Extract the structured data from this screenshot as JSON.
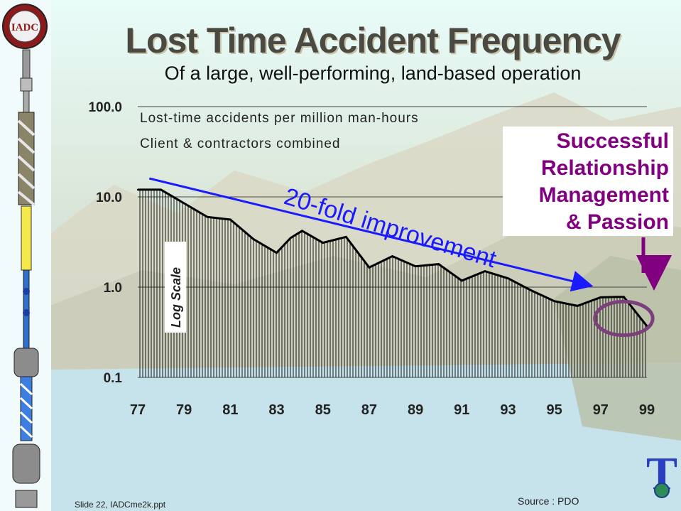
{
  "slide": {
    "title": "Lost Time Accident Frequency",
    "subtitle": "Of a large, well-performing, land-based operation",
    "footer_left": "Slide 22, IADCme2k.ppt",
    "footer_right": "Source : PDO",
    "logo_text": "IADC",
    "corner_logo_letter": "T"
  },
  "callout": {
    "lines": [
      "Successful",
      "Relationship",
      "Management",
      "& Passion"
    ],
    "color": "#800080"
  },
  "colors": {
    "arrow": "#1a1aff",
    "ellipse": "#7b3f7b",
    "line": "#000000",
    "hatch": "#000000"
  },
  "chart_data": {
    "type": "area",
    "scale": "log",
    "legend_lines": [
      "Lost-time accidents per million man-hours",
      "Client & contractors combined"
    ],
    "axis_note": "Log Scale",
    "annotation": "20-fold improvement",
    "y_ticks": [
      "100.0",
      "10.0",
      "1.0",
      "0.1"
    ],
    "y_tick_values": [
      100,
      10,
      1,
      0.1
    ],
    "ylim": [
      0.1,
      100
    ],
    "x_tick_labels": [
      "77",
      "79",
      "81",
      "83",
      "85",
      "87",
      "89",
      "91",
      "93",
      "95",
      "97",
      "99"
    ],
    "x_tick_values": [
      1977,
      1979,
      1981,
      1983,
      1985,
      1987,
      1989,
      1991,
      1993,
      1995,
      1997,
      1999
    ],
    "xlim": [
      1977,
      1999
    ],
    "series": [
      {
        "name": "Lost-time accidents per million man-hours",
        "x": [
          1977,
          1978,
          1979,
          1980,
          1981,
          1982,
          1983,
          1983.6,
          1984.1,
          1985,
          1986,
          1987,
          1988,
          1989,
          1990,
          1991,
          1992,
          1993,
          1994,
          1995,
          1996,
          1997,
          1997.7,
          1998,
          1999
        ],
        "values": [
          12,
          12,
          8.5,
          6,
          5.6,
          3.4,
          2.4,
          3.5,
          4.2,
          3.1,
          3.6,
          1.65,
          2.2,
          1.7,
          1.8,
          1.18,
          1.5,
          1.25,
          0.92,
          0.7,
          0.62,
          0.77,
          0.78,
          0.78,
          0.37
        ]
      }
    ],
    "improvement_arrow": {
      "from": [
        1977.5,
        16
      ],
      "to": [
        1996.5,
        1.05
      ]
    },
    "highlight_ellipse": {
      "center": [
        1998,
        0.45
      ],
      "x_span": [
        1996.8,
        1999.3
      ]
    }
  }
}
